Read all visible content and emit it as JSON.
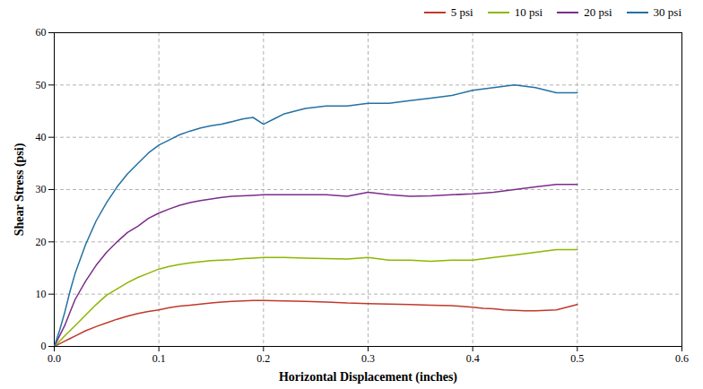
{
  "chart_data": {
    "type": "line",
    "xlabel": "Horizontal Displacement (inches)",
    "ylabel": "Shear Stress (psi)",
    "xlim": [
      0,
      0.6
    ],
    "ylim": [
      0,
      60
    ],
    "xticks": [
      {
        "value": 0,
        "label": "0.0"
      },
      0.1,
      0.2,
      0.3,
      0.4,
      0.5,
      0.6
    ],
    "yticks": [
      0,
      10,
      20,
      30,
      40,
      50,
      60
    ],
    "grid": true,
    "legend": "upper right",
    "series": [
      {
        "name": "5 psi",
        "color": "#c0392b",
        "x": [
          0.0,
          0.005,
          0.01,
          0.015,
          0.02,
          0.03,
          0.04,
          0.05,
          0.06,
          0.07,
          0.08,
          0.09,
          0.1,
          0.11,
          0.12,
          0.13,
          0.14,
          0.15,
          0.16,
          0.17,
          0.18,
          0.19,
          0.2,
          0.22,
          0.24,
          0.26,
          0.28,
          0.3,
          0.32,
          0.34,
          0.36,
          0.38,
          0.4,
          0.41,
          0.42,
          0.43,
          0.44,
          0.45,
          0.46,
          0.47,
          0.48,
          0.49,
          0.5
        ],
        "values": [
          0.0,
          0.5,
          1.0,
          1.5,
          2.0,
          3.0,
          3.8,
          4.5,
          5.2,
          5.8,
          6.3,
          6.7,
          7.0,
          7.4,
          7.7,
          7.9,
          8.1,
          8.3,
          8.5,
          8.6,
          8.7,
          8.8,
          8.8,
          8.7,
          8.6,
          8.5,
          8.3,
          8.2,
          8.1,
          8.0,
          7.9,
          7.8,
          7.5,
          7.3,
          7.2,
          7.0,
          6.9,
          6.8,
          6.8,
          6.9,
          7.0,
          7.5,
          8.0
        ]
      },
      {
        "name": "10 psi",
        "color": "#8db600",
        "x": [
          0.0,
          0.005,
          0.01,
          0.015,
          0.02,
          0.03,
          0.04,
          0.05,
          0.06,
          0.07,
          0.08,
          0.09,
          0.1,
          0.11,
          0.12,
          0.13,
          0.14,
          0.15,
          0.16,
          0.17,
          0.18,
          0.19,
          0.2,
          0.22,
          0.24,
          0.26,
          0.28,
          0.3,
          0.32,
          0.34,
          0.36,
          0.38,
          0.4,
          0.42,
          0.44,
          0.46,
          0.48,
          0.5
        ],
        "values": [
          0.0,
          1.0,
          2.0,
          3.0,
          4.0,
          6.0,
          8.0,
          9.8,
          11.0,
          12.2,
          13.2,
          14.0,
          14.8,
          15.3,
          15.7,
          16.0,
          16.2,
          16.4,
          16.5,
          16.6,
          16.8,
          16.9,
          17.0,
          17.0,
          16.9,
          16.8,
          16.7,
          17.0,
          16.5,
          16.5,
          16.3,
          16.5,
          16.5,
          17.0,
          17.5,
          18.0,
          18.5,
          18.5
        ]
      },
      {
        "name": "20 psi",
        "color": "#7b2d8b",
        "x": [
          0.0,
          0.005,
          0.01,
          0.015,
          0.02,
          0.03,
          0.04,
          0.05,
          0.06,
          0.07,
          0.08,
          0.09,
          0.1,
          0.11,
          0.12,
          0.13,
          0.14,
          0.15,
          0.16,
          0.17,
          0.18,
          0.19,
          0.2,
          0.22,
          0.24,
          0.26,
          0.28,
          0.3,
          0.32,
          0.34,
          0.36,
          0.38,
          0.4,
          0.42,
          0.44,
          0.46,
          0.48,
          0.5
        ],
        "values": [
          0.0,
          2.0,
          4.0,
          6.5,
          9.0,
          12.5,
          15.5,
          18.0,
          20.0,
          21.8,
          23.0,
          24.5,
          25.5,
          26.3,
          27.0,
          27.5,
          27.9,
          28.2,
          28.5,
          28.7,
          28.8,
          28.9,
          29.0,
          29.0,
          29.0,
          29.0,
          28.7,
          29.5,
          29.0,
          28.7,
          28.8,
          29.0,
          29.2,
          29.5,
          30.0,
          30.5,
          31.0,
          31.0
        ]
      },
      {
        "name": "30 psi",
        "color": "#2471a3",
        "x": [
          0.0,
          0.005,
          0.01,
          0.015,
          0.02,
          0.03,
          0.04,
          0.05,
          0.06,
          0.07,
          0.08,
          0.09,
          0.1,
          0.11,
          0.12,
          0.13,
          0.14,
          0.15,
          0.16,
          0.17,
          0.18,
          0.19,
          0.2,
          0.21,
          0.22,
          0.24,
          0.26,
          0.28,
          0.3,
          0.32,
          0.34,
          0.36,
          0.38,
          0.4,
          0.42,
          0.44,
          0.46,
          0.48,
          0.5
        ],
        "values": [
          0.0,
          3.0,
          6.5,
          10.5,
          14.0,
          19.5,
          24.0,
          27.5,
          30.5,
          33.0,
          35.0,
          37.0,
          38.5,
          39.5,
          40.5,
          41.2,
          41.8,
          42.2,
          42.5,
          43.0,
          43.5,
          43.8,
          42.5,
          43.5,
          44.5,
          45.5,
          46.0,
          46.0,
          46.5,
          46.5,
          47.0,
          47.5,
          48.0,
          49.0,
          49.5,
          50.0,
          49.5,
          48.5,
          48.5
        ]
      }
    ]
  }
}
